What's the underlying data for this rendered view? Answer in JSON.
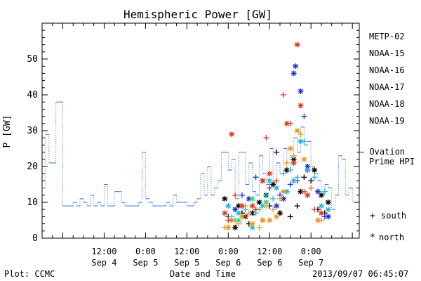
{
  "chart_data": {
    "type": "scatter",
    "title": "Hemispheric Power [GW]",
    "ylabel": "P [GW]",
    "xlabel": "Date and Time",
    "footer_left": "Plot: CCMC",
    "footer_right": "2013/09/07 06:45:07",
    "ylim": [
      0,
      60
    ],
    "y_ticks": [
      0,
      10,
      20,
      30,
      40,
      50
    ],
    "xlim_hours": [
      -6,
      86
    ],
    "x_ticks": [
      {
        "h": 12,
        "top": "12:00",
        "bottom": "Sep 4"
      },
      {
        "h": 24,
        "top": "0:00",
        "bottom": "Sep 5"
      },
      {
        "h": 36,
        "top": "12:00",
        "bottom": "Sep 5"
      },
      {
        "h": 48,
        "top": "0:00",
        "bottom": "Sep 6"
      },
      {
        "h": 60,
        "top": "12:00",
        "bottom": "Sep 6"
      },
      {
        "h": 72,
        "top": "0:00",
        "bottom": "Sep 7"
      }
    ],
    "legend": [
      {
        "name": "METP-02",
        "color": "#000000"
      },
      {
        "name": "NOAA-15",
        "color": "#1c2fd1"
      },
      {
        "name": "NOAA-16",
        "color": "#21b5d8"
      },
      {
        "name": "NOAA-17",
        "color": "#2bd97b"
      },
      {
        "name": "NOAA-18",
        "color": "#f0951c"
      },
      {
        "name": "NOAA-19",
        "color": "#e0331c"
      }
    ],
    "ovation_label": [
      "— Ovation",
      "Prime HPI"
    ],
    "ovation_color": "#2f6fd6",
    "marker_legend": [
      {
        "symbol": "+",
        "label": "south"
      },
      {
        "symbol": "*",
        "label": "north"
      }
    ],
    "ovation_steps": [
      [
        -6,
        14
      ],
      [
        -5,
        29
      ],
      [
        -4,
        21
      ],
      [
        -2,
        38
      ],
      [
        0,
        9
      ],
      [
        2,
        9
      ],
      [
        3,
        10
      ],
      [
        4,
        9
      ],
      [
        5,
        11
      ],
      [
        6,
        10
      ],
      [
        7,
        9
      ],
      [
        8,
        12
      ],
      [
        9,
        9
      ],
      [
        10,
        10
      ],
      [
        11,
        9
      ],
      [
        12,
        15
      ],
      [
        13,
        9
      ],
      [
        15,
        13
      ],
      [
        17,
        10
      ],
      [
        18,
        9
      ],
      [
        22,
        10
      ],
      [
        23,
        24
      ],
      [
        24,
        11
      ],
      [
        25,
        10
      ],
      [
        26,
        9
      ],
      [
        30,
        10
      ],
      [
        31,
        9
      ],
      [
        32,
        12
      ],
      [
        33,
        10
      ],
      [
        36,
        9
      ],
      [
        38,
        10
      ],
      [
        39,
        11
      ],
      [
        40,
        18
      ],
      [
        41,
        12
      ],
      [
        42,
        20
      ],
      [
        43,
        12
      ],
      [
        44,
        14
      ],
      [
        45,
        16
      ],
      [
        46,
        24
      ],
      [
        48,
        19
      ],
      [
        49,
        22
      ],
      [
        50,
        11
      ],
      [
        51,
        24
      ],
      [
        53,
        15
      ],
      [
        54,
        21
      ],
      [
        55,
        13
      ],
      [
        56,
        12
      ],
      [
        57,
        23
      ],
      [
        58,
        18
      ],
      [
        59,
        15
      ],
      [
        60,
        25
      ],
      [
        61,
        16
      ],
      [
        62,
        21
      ],
      [
        63,
        18
      ],
      [
        64,
        25
      ],
      [
        65,
        19
      ],
      [
        66,
        23
      ],
      [
        67,
        28
      ],
      [
        68,
        24
      ],
      [
        69,
        31
      ],
      [
        70,
        26
      ],
      [
        71,
        27
      ],
      [
        72,
        20
      ],
      [
        73,
        18
      ],
      [
        74,
        16
      ],
      [
        75,
        12
      ],
      [
        76,
        15
      ],
      [
        77,
        14
      ],
      [
        78,
        8
      ],
      [
        79,
        12
      ],
      [
        80,
        23
      ],
      [
        81,
        22
      ],
      [
        82,
        12
      ],
      [
        83,
        14
      ],
      [
        84,
        10
      ]
    ],
    "series": [
      {
        "name": "METP-02",
        "color": "#000000",
        "points": [
          [
            47,
            11,
            "*"
          ],
          [
            49,
            5,
            "+"
          ],
          [
            50,
            3,
            "*"
          ],
          [
            51,
            9,
            "*"
          ],
          [
            52,
            7,
            "+"
          ],
          [
            53,
            6,
            "*"
          ],
          [
            54,
            4,
            "+"
          ],
          [
            55,
            7,
            "*"
          ],
          [
            56,
            8,
            "+"
          ],
          [
            57,
            10,
            "*"
          ],
          [
            58,
            5,
            "+"
          ],
          [
            59,
            12,
            "*"
          ],
          [
            60,
            9,
            "+"
          ],
          [
            61,
            15,
            "*"
          ],
          [
            62,
            24,
            "+"
          ],
          [
            63,
            7,
            "*"
          ],
          [
            64,
            11,
            "+"
          ],
          [
            65,
            19,
            "*"
          ],
          [
            66,
            6,
            "+"
          ],
          [
            67,
            22,
            "*"
          ],
          [
            68,
            9,
            "+"
          ],
          [
            69,
            13,
            "*"
          ],
          [
            70,
            17,
            "+"
          ],
          [
            71,
            19,
            "*"
          ],
          [
            72,
            16,
            "+"
          ],
          [
            73,
            19,
            "*"
          ],
          [
            74,
            8,
            "+"
          ],
          [
            75,
            12,
            "*"
          ],
          [
            76,
            7,
            "+"
          ],
          [
            77,
            10,
            "*"
          ]
        ]
      },
      {
        "name": "NOAA-15",
        "color": "#1c2fd1",
        "points": [
          [
            48,
            6,
            "+"
          ],
          [
            50,
            8,
            "*"
          ],
          [
            52,
            12,
            "+"
          ],
          [
            54,
            11,
            "*"
          ],
          [
            56,
            17,
            "+"
          ],
          [
            58,
            16,
            "*"
          ],
          [
            60,
            14,
            "+"
          ],
          [
            62,
            9,
            "*"
          ],
          [
            63,
            12,
            "+"
          ],
          [
            64,
            11,
            "*"
          ],
          [
            66,
            15,
            "+"
          ],
          [
            67,
            46,
            "*"
          ],
          [
            67.5,
            48,
            "*"
          ],
          [
            68,
            16,
            "+"
          ],
          [
            69,
            41,
            "*"
          ],
          [
            70,
            34,
            "+"
          ],
          [
            71,
            20,
            "*"
          ],
          [
            72,
            14,
            "+"
          ],
          [
            74,
            13,
            "*"
          ],
          [
            76,
            6,
            "+"
          ],
          [
            77,
            6,
            "*"
          ]
        ]
      },
      {
        "name": "NOAA-16",
        "color": "#21b5d8",
        "points": [
          [
            48,
            9,
            "*"
          ],
          [
            50,
            5,
            "+"
          ],
          [
            51,
            7,
            "*"
          ],
          [
            53,
            8,
            "+"
          ],
          [
            55,
            3,
            "*"
          ],
          [
            56,
            7,
            "+"
          ],
          [
            58,
            9,
            "*"
          ],
          [
            59,
            12,
            "+"
          ],
          [
            60,
            16,
            "*"
          ],
          [
            61,
            11,
            "+"
          ],
          [
            62,
            14,
            "*"
          ],
          [
            64,
            18,
            "+"
          ],
          [
            65,
            13,
            "*"
          ],
          [
            66,
            19,
            "+"
          ],
          [
            67,
            16,
            "*"
          ],
          [
            68,
            17,
            "+"
          ],
          [
            69,
            27,
            "*"
          ],
          [
            70,
            27,
            "+"
          ],
          [
            71,
            19,
            "*"
          ],
          [
            73,
            17,
            "+"
          ],
          [
            75,
            9,
            "*"
          ],
          [
            76,
            13,
            "+"
          ],
          [
            77,
            8,
            "*"
          ]
        ]
      },
      {
        "name": "NOAA-17",
        "color": "#2bd97b",
        "points": [
          [
            49,
            6,
            "+"
          ],
          [
            51,
            5,
            "*"
          ],
          [
            53,
            9,
            "+"
          ],
          [
            55,
            11,
            "*"
          ],
          [
            57,
            8,
            "+"
          ],
          [
            59,
            10,
            "*"
          ]
        ]
      },
      {
        "name": "NOAA-18",
        "color": "#f0951c",
        "points": [
          [
            47,
            3,
            "+"
          ],
          [
            48,
            3,
            "*"
          ],
          [
            49,
            5,
            "*"
          ],
          [
            51,
            4,
            "+"
          ],
          [
            52,
            6,
            "*"
          ],
          [
            54,
            7,
            "+"
          ],
          [
            55,
            4,
            "*"
          ],
          [
            57,
            3,
            "+"
          ],
          [
            58,
            5,
            "*"
          ],
          [
            59,
            9,
            "+"
          ],
          [
            60,
            5,
            "*"
          ],
          [
            61,
            8,
            "+"
          ],
          [
            62,
            6,
            "*"
          ],
          [
            63,
            11,
            "+"
          ],
          [
            64,
            13,
            "*"
          ],
          [
            65,
            21,
            "+"
          ],
          [
            66,
            25,
            "*"
          ],
          [
            67,
            23,
            "+"
          ],
          [
            68,
            30,
            "*"
          ],
          [
            69,
            29,
            "+"
          ],
          [
            70,
            22,
            "*"
          ],
          [
            72,
            14,
            "+"
          ],
          [
            74,
            5,
            "*"
          ],
          [
            75,
            5,
            "+"
          ]
        ]
      },
      {
        "name": "NOAA-19",
        "color": "#e0331c",
        "points": [
          [
            47,
            7,
            "*"
          ],
          [
            48,
            5,
            "+"
          ],
          [
            49,
            29,
            "*"
          ],
          [
            50,
            12,
            "+"
          ],
          [
            52,
            9,
            "*"
          ],
          [
            53,
            6,
            "+"
          ],
          [
            55,
            9,
            "*"
          ],
          [
            56,
            8,
            "+"
          ],
          [
            58,
            16,
            "*"
          ],
          [
            59,
            28,
            "+"
          ],
          [
            60,
            18,
            "*"
          ],
          [
            62,
            16,
            "+"
          ],
          [
            64,
            40,
            "+"
          ],
          [
            65,
            32,
            "*"
          ],
          [
            66,
            32,
            "+"
          ],
          [
            67,
            21,
            "*"
          ],
          [
            68,
            54,
            "*"
          ],
          [
            69,
            37,
            "*"
          ],
          [
            70,
            13,
            "+"
          ],
          [
            71,
            12,
            "*"
          ],
          [
            73,
            8,
            "+"
          ],
          [
            75,
            7,
            "*"
          ]
        ]
      }
    ]
  }
}
